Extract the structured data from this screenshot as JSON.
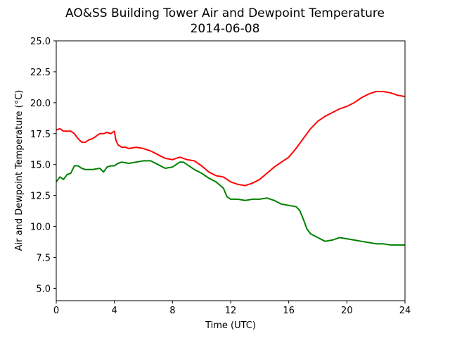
{
  "chart_data": {
    "type": "line",
    "title": "AO&SS Building Tower Air and Dewpoint Temperature",
    "subtitle": "2014-06-08",
    "xlabel": "Time (UTC)",
    "ylabel": "Air and Dewpoint Temperature (°C)",
    "xlim": [
      0,
      24
    ],
    "ylim": [
      4.0,
      25.0
    ],
    "xticks": [
      0,
      4,
      8,
      12,
      16,
      20,
      24
    ],
    "xtick_labels": [
      "0",
      "4",
      "8",
      "12",
      "16",
      "20",
      "24"
    ],
    "yticks": [
      5.0,
      7.5,
      10.0,
      12.5,
      15.0,
      17.5,
      20.0,
      22.5,
      25.0
    ],
    "ytick_labels": [
      "5.0",
      "7.5",
      "10.0",
      "12.5",
      "15.0",
      "17.5",
      "20.0",
      "22.5",
      "25.0"
    ],
    "grid": false,
    "legend": "none",
    "series": [
      {
        "color": "#ff0000",
        "x": [
          0,
          0.25,
          0.5,
          0.75,
          1.0,
          1.25,
          1.5,
          1.75,
          2.0,
          2.25,
          2.5,
          2.75,
          3.0,
          3.25,
          3.5,
          3.75,
          4.0,
          4.1,
          4.25,
          4.5,
          4.75,
          5.0,
          5.5,
          6.0,
          6.5,
          7.0,
          7.5,
          8.0,
          8.5,
          8.75,
          9.0,
          9.5,
          10.0,
          10.5,
          11.0,
          11.5,
          12.0,
          12.5,
          13.0,
          13.5,
          14.0,
          14.5,
          15.0,
          15.5,
          16.0,
          16.5,
          17.0,
          17.5,
          18.0,
          18.5,
          19.0,
          19.5,
          20.0,
          20.5,
          21.0,
          21.5,
          22.0,
          22.5,
          23.0,
          23.5,
          24.0
        ],
        "values": [
          17.8,
          17.9,
          17.7,
          17.7,
          17.7,
          17.5,
          17.1,
          16.8,
          16.8,
          17.0,
          17.1,
          17.3,
          17.5,
          17.5,
          17.6,
          17.5,
          17.7,
          17.0,
          16.6,
          16.4,
          16.4,
          16.3,
          16.4,
          16.3,
          16.1,
          15.8,
          15.5,
          15.4,
          15.6,
          15.5,
          15.4,
          15.3,
          14.9,
          14.4,
          14.1,
          14.0,
          13.6,
          13.4,
          13.3,
          13.5,
          13.8,
          14.3,
          14.8,
          15.2,
          15.6,
          16.3,
          17.1,
          17.9,
          18.5,
          18.9,
          19.2,
          19.5,
          19.7,
          20.0,
          20.4,
          20.7,
          20.9,
          20.9,
          20.8,
          20.6,
          20.5
        ]
      },
      {
        "color": "#008000",
        "x": [
          0,
          0.25,
          0.5,
          0.75,
          1.0,
          1.25,
          1.5,
          1.75,
          2.0,
          2.5,
          3.0,
          3.25,
          3.5,
          3.75,
          4.0,
          4.25,
          4.5,
          5.0,
          5.5,
          6.0,
          6.5,
          7.0,
          7.5,
          8.0,
          8.5,
          8.75,
          9.0,
          9.5,
          10.0,
          10.5,
          11.0,
          11.5,
          11.75,
          12.0,
          12.5,
          13.0,
          13.5,
          14.0,
          14.5,
          15.0,
          15.5,
          16.0,
          16.5,
          16.75,
          17.0,
          17.25,
          17.5,
          18.0,
          18.5,
          19.0,
          19.5,
          20.0,
          20.5,
          21.0,
          21.5,
          22.0,
          22.5,
          23.0,
          23.5,
          24.0
        ],
        "values": [
          13.6,
          14.0,
          13.8,
          14.2,
          14.3,
          14.9,
          14.9,
          14.7,
          14.6,
          14.6,
          14.7,
          14.4,
          14.8,
          14.9,
          14.9,
          15.1,
          15.2,
          15.1,
          15.2,
          15.3,
          15.3,
          15.0,
          14.7,
          14.8,
          15.2,
          15.2,
          15.0,
          14.6,
          14.3,
          13.9,
          13.6,
          13.1,
          12.4,
          12.2,
          12.2,
          12.1,
          12.2,
          12.2,
          12.3,
          12.1,
          11.8,
          11.7,
          11.6,
          11.3,
          10.6,
          9.8,
          9.4,
          9.1,
          8.8,
          8.9,
          9.1,
          9.0,
          8.9,
          8.8,
          8.7,
          8.6,
          8.6,
          8.5,
          8.5,
          8.5
        ]
      }
    ]
  }
}
